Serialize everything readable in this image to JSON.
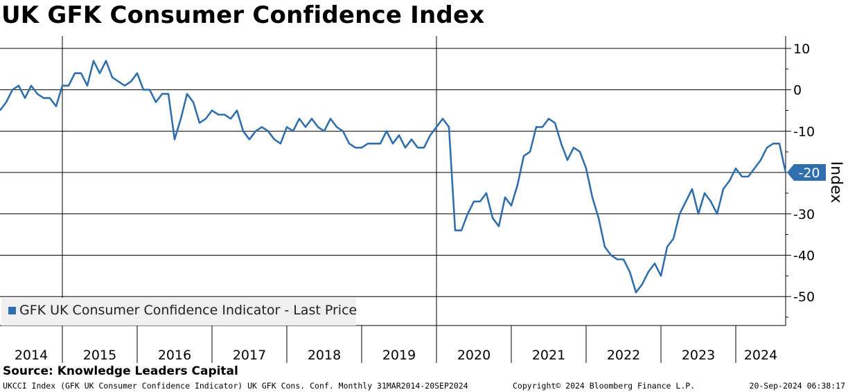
{
  "title": "UK GFK Consumer Confidence Index",
  "source": "Source: Knowledge Leaders Capital",
  "footer": {
    "left": "UKCCI Index (GFK UK Consumer Confidence Indicator) UK GFK Cons. Conf.  Monthly 31MAR2014-20SEP2024",
    "middle": "Copyright© 2024 Bloomberg Finance L.P.",
    "right": "20-Sep-2024 06:38:17"
  },
  "legend": {
    "label": "GFK UK Consumer Confidence Indicator  - Last Price"
  },
  "last_value_label": "-20",
  "colors": {
    "series": "#2f6fad",
    "last_tag": "#2f6fad",
    "legend_bg": "#f0f0f0"
  },
  "chart_data": {
    "type": "line",
    "title": "UK GFK Consumer Confidence Index",
    "ylabel": "Index",
    "ylim": [
      -57,
      13
    ],
    "yticks": [
      10,
      0,
      -10,
      -20,
      -30,
      -40,
      -50
    ],
    "xlim": [
      "2014-03",
      "2024-09"
    ],
    "x_labels": [
      "2014",
      "2015",
      "2016",
      "2017",
      "2018",
      "2019",
      "2020",
      "2021",
      "2022",
      "2023",
      "2024"
    ],
    "grid": true,
    "legend_position": "bottom-left",
    "series": [
      {
        "name": "GFK UK Consumer Confidence Indicator  - Last Price",
        "x": [
          "2014-03",
          "2014-04",
          "2014-05",
          "2014-06",
          "2014-07",
          "2014-08",
          "2014-09",
          "2014-10",
          "2014-11",
          "2014-12",
          "2015-01",
          "2015-02",
          "2015-03",
          "2015-04",
          "2015-05",
          "2015-06",
          "2015-07",
          "2015-08",
          "2015-09",
          "2015-10",
          "2015-11",
          "2015-12",
          "2016-01",
          "2016-02",
          "2016-03",
          "2016-04",
          "2016-05",
          "2016-06",
          "2016-07",
          "2016-08",
          "2016-09",
          "2016-10",
          "2016-11",
          "2016-12",
          "2017-01",
          "2017-02",
          "2017-03",
          "2017-04",
          "2017-05",
          "2017-06",
          "2017-07",
          "2017-08",
          "2017-09",
          "2017-10",
          "2017-11",
          "2017-12",
          "2018-01",
          "2018-02",
          "2018-03",
          "2018-04",
          "2018-05",
          "2018-06",
          "2018-07",
          "2018-08",
          "2018-09",
          "2018-10",
          "2018-11",
          "2018-12",
          "2019-01",
          "2019-02",
          "2019-03",
          "2019-04",
          "2019-05",
          "2019-06",
          "2019-07",
          "2019-08",
          "2019-09",
          "2019-10",
          "2019-11",
          "2019-12",
          "2020-01",
          "2020-02",
          "2020-03",
          "2020-04",
          "2020-05",
          "2020-06",
          "2020-07",
          "2020-08",
          "2020-09",
          "2020-10",
          "2020-11",
          "2020-12",
          "2021-01",
          "2021-02",
          "2021-03",
          "2021-04",
          "2021-05",
          "2021-06",
          "2021-07",
          "2021-08",
          "2021-09",
          "2021-10",
          "2021-11",
          "2021-12",
          "2022-01",
          "2022-02",
          "2022-03",
          "2022-04",
          "2022-05",
          "2022-06",
          "2022-07",
          "2022-08",
          "2022-09",
          "2022-10",
          "2022-11",
          "2022-12",
          "2023-01",
          "2023-02",
          "2023-03",
          "2023-04",
          "2023-05",
          "2023-06",
          "2023-07",
          "2023-08",
          "2023-09",
          "2023-10",
          "2023-11",
          "2023-12",
          "2024-01",
          "2024-02",
          "2024-03",
          "2024-04",
          "2024-05",
          "2024-06",
          "2024-07",
          "2024-08",
          "2024-09"
        ],
        "values": [
          -5,
          -3,
          0,
          1,
          -2,
          1,
          -1,
          -2,
          -2,
          -4,
          1,
          1,
          4,
          4,
          1,
          7,
          4,
          7,
          3,
          2,
          1,
          2,
          4,
          0,
          0,
          -3,
          -1,
          -1,
          -12,
          -7,
          -1,
          -3,
          -8,
          -7,
          -5,
          -6,
          -6,
          -7,
          -5,
          -10,
          -12,
          -10,
          -9,
          -10,
          -12,
          -13,
          -9,
          -10,
          -7,
          -9,
          -7,
          -9,
          -10,
          -7,
          -9,
          -10,
          -13,
          -14,
          -14,
          -13,
          -13,
          -13,
          -10,
          -13,
          -11,
          -14,
          -12,
          -14,
          -14,
          -11,
          -9,
          -7,
          -9,
          -34,
          -34,
          -30,
          -27,
          -27,
          -25,
          -31,
          -33,
          -26,
          -28,
          -23,
          -16,
          -15,
          -9,
          -9,
          -7,
          -8,
          -13,
          -17,
          -14,
          -15,
          -19,
          -26,
          -31,
          -38,
          -40,
          -41,
          -41,
          -44,
          -49,
          -47,
          -44,
          -42,
          -45,
          -38,
          -36,
          -30,
          -27,
          -24,
          -30,
          -25,
          -27,
          -30,
          -24,
          -22,
          -19,
          -21,
          -21,
          -19,
          -17,
          -14,
          -13,
          -13,
          -20
        ]
      }
    ]
  }
}
